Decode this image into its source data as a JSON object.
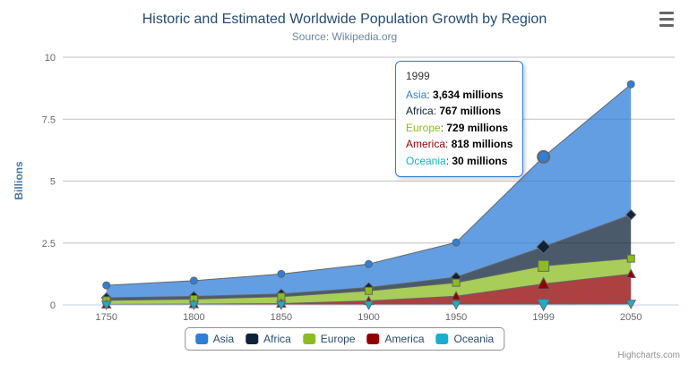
{
  "chart": {
    "title": "Historic and Estimated Worldwide Population Growth by Region",
    "subtitle": "Source: Wikipedia.org"
  },
  "chart_data": {
    "type": "area",
    "stacking": "normal",
    "title": "Historic and Estimated Worldwide Population Growth by Region",
    "subtitle": "Source: Wikipedia.org",
    "categories": [
      "1750",
      "1800",
      "1850",
      "1900",
      "1950",
      "1999",
      "2050"
    ],
    "series": [
      {
        "name": "Asia",
        "color": "#2f7ed8",
        "marker": "circle",
        "values": [
          502,
          635,
          809,
          947,
          1402,
          3634,
          5268
        ]
      },
      {
        "name": "Africa",
        "color": "#0d233a",
        "marker": "diamond",
        "values": [
          106,
          107,
          111,
          133,
          221,
          767,
          1766
        ]
      },
      {
        "name": "Europe",
        "color": "#8bbc21",
        "marker": "square",
        "values": [
          163,
          203,
          276,
          408,
          547,
          729,
          628
        ]
      },
      {
        "name": "America",
        "color": "#910000",
        "marker": "triangle",
        "values": [
          18,
          31,
          54,
          156,
          339,
          818,
          1201
        ]
      },
      {
        "name": "Oceania",
        "color": "#1aadce",
        "marker": "triangle-down",
        "values": [
          2,
          2,
          2,
          6,
          13,
          30,
          46
        ]
      }
    ],
    "values_unit": "millions",
    "ylabel": "Billions",
    "yticks": [
      {
        "value": 0,
        "label": "0"
      },
      {
        "value": 2500,
        "label": "2.5"
      },
      {
        "value": 5000,
        "label": "5"
      },
      {
        "value": 7500,
        "label": "7.5"
      },
      {
        "value": 10000,
        "label": "10"
      }
    ],
    "ylim": [
      0,
      10000
    ],
    "grid": true,
    "legend_position": "bottom",
    "hover_index": 5,
    "style": {
      "line_color": "#666666",
      "grid_color": "#C0C0C0",
      "axis_line_color": "#C0D0E0",
      "label_color": "#666666",
      "fill_opacity": 0.75
    }
  },
  "tooltip": {
    "header": "1999",
    "border_color": "#2f7ed8",
    "rows": [
      {
        "name": "Asia",
        "value": "3,634 millions"
      },
      {
        "name": "Africa",
        "value": "767 millions"
      },
      {
        "name": "Europe",
        "value": "729 millions"
      },
      {
        "name": "America",
        "value": "818 millions"
      },
      {
        "name": "Oceania",
        "value": "30 millions"
      }
    ]
  },
  "credits": {
    "label": "Highcharts.com"
  }
}
